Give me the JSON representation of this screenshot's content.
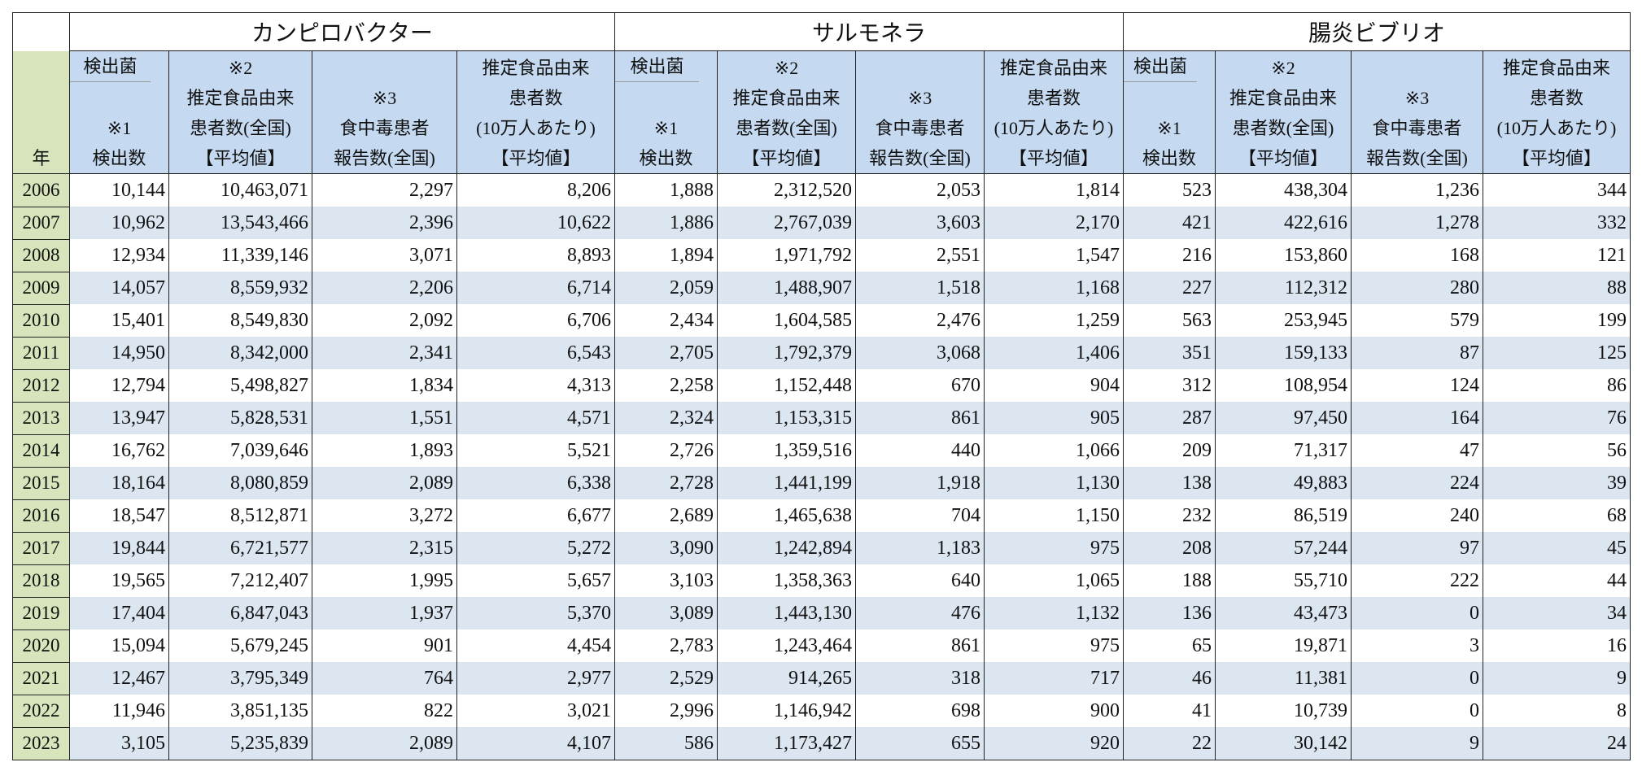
{
  "table": {
    "year_header": "年",
    "groups": [
      {
        "name": "カンピロバクター",
        "columns": [
          {
            "lines": [
              "検出菌",
              "※1",
              "検出数"
            ]
          },
          {
            "lines": [
              "※2",
              "推定食品由来",
              "患者数(全国)",
              "【平均値】"
            ]
          },
          {
            "lines": [
              "※3",
              "食中毒患者",
              "報告数(全国)"
            ]
          },
          {
            "lines": [
              "推定食品由来",
              "患者数",
              "(10万人あたり)",
              "【平均値】"
            ]
          }
        ]
      },
      {
        "name": "サルモネラ",
        "columns": [
          {
            "lines": [
              "検出菌",
              "※1",
              "検出数"
            ]
          },
          {
            "lines": [
              "※2",
              "推定食品由来",
              "患者数(全国)",
              "【平均値】"
            ]
          },
          {
            "lines": [
              "※3",
              "食中毒患者",
              "報告数(全国)"
            ]
          },
          {
            "lines": [
              "推定食品由来",
              "患者数",
              "(10万人あたり)",
              "【平均値】"
            ]
          }
        ]
      },
      {
        "name": "腸炎ビブリオ",
        "columns": [
          {
            "lines": [
              "検出菌",
              "※1",
              "検出数"
            ]
          },
          {
            "lines": [
              "※2",
              "推定食品由来",
              "患者数(全国)",
              "【平均値】"
            ]
          },
          {
            "lines": [
              "※3",
              "食中毒患者",
              "報告数(全国)"
            ]
          },
          {
            "lines": [
              "推定食品由来",
              "患者数",
              "(10万人あたり)",
              "【平均値】"
            ]
          }
        ]
      }
    ],
    "rows": [
      [
        "2006",
        "10,144",
        "10,463,071",
        "2,297",
        "8,206",
        "1,888",
        "2,312,520",
        "2,053",
        "1,814",
        "523",
        "438,304",
        "1,236",
        "344"
      ],
      [
        "2007",
        "10,962",
        "13,543,466",
        "2,396",
        "10,622",
        "1,886",
        "2,767,039",
        "3,603",
        "2,170",
        "421",
        "422,616",
        "1,278",
        "332"
      ],
      [
        "2008",
        "12,934",
        "11,339,146",
        "3,071",
        "8,893",
        "1,894",
        "1,971,792",
        "2,551",
        "1,547",
        "216",
        "153,860",
        "168",
        "121"
      ],
      [
        "2009",
        "14,057",
        "8,559,932",
        "2,206",
        "6,714",
        "2,059",
        "1,488,907",
        "1,518",
        "1,168",
        "227",
        "112,312",
        "280",
        "88"
      ],
      [
        "2010",
        "15,401",
        "8,549,830",
        "2,092",
        "6,706",
        "2,434",
        "1,604,585",
        "2,476",
        "1,259",
        "563",
        "253,945",
        "579",
        "199"
      ],
      [
        "2011",
        "14,950",
        "8,342,000",
        "2,341",
        "6,543",
        "2,705",
        "1,792,379",
        "3,068",
        "1,406",
        "351",
        "159,133",
        "87",
        "125"
      ],
      [
        "2012",
        "12,794",
        "5,498,827",
        "1,834",
        "4,313",
        "2,258",
        "1,152,448",
        "670",
        "904",
        "312",
        "108,954",
        "124",
        "86"
      ],
      [
        "2013",
        "13,947",
        "5,828,531",
        "1,551",
        "4,571",
        "2,324",
        "1,153,315",
        "861",
        "905",
        "287",
        "97,450",
        "164",
        "76"
      ],
      [
        "2014",
        "16,762",
        "7,039,646",
        "1,893",
        "5,521",
        "2,726",
        "1,359,516",
        "440",
        "1,066",
        "209",
        "71,317",
        "47",
        "56"
      ],
      [
        "2015",
        "18,164",
        "8,080,859",
        "2,089",
        "6,338",
        "2,728",
        "1,441,199",
        "1,918",
        "1,130",
        "138",
        "49,883",
        "224",
        "39"
      ],
      [
        "2016",
        "18,547",
        "8,512,871",
        "3,272",
        "6,677",
        "2,689",
        "1,465,638",
        "704",
        "1,150",
        "232",
        "86,519",
        "240",
        "68"
      ],
      [
        "2017",
        "19,844",
        "6,721,577",
        "2,315",
        "5,272",
        "3,090",
        "1,242,894",
        "1,183",
        "975",
        "208",
        "57,244",
        "97",
        "45"
      ],
      [
        "2018",
        "19,565",
        "7,212,407",
        "1,995",
        "5,657",
        "3,103",
        "1,358,363",
        "640",
        "1,065",
        "188",
        "55,710",
        "222",
        "44"
      ],
      [
        "2019",
        "17,404",
        "6,847,043",
        "1,937",
        "5,370",
        "3,089",
        "1,443,130",
        "476",
        "1,132",
        "136",
        "43,473",
        "0",
        "34"
      ],
      [
        "2020",
        "15,094",
        "5,679,245",
        "901",
        "4,454",
        "2,783",
        "1,243,464",
        "861",
        "975",
        "65",
        "19,871",
        "3",
        "16"
      ],
      [
        "2021",
        "12,467",
        "3,795,349",
        "764",
        "2,977",
        "2,529",
        "914,265",
        "318",
        "717",
        "46",
        "11,381",
        "0",
        "9"
      ],
      [
        "2022",
        "11,946",
        "3,851,135",
        "822",
        "3,021",
        "2,996",
        "1,146,942",
        "698",
        "900",
        "41",
        "10,739",
        "0",
        "8"
      ],
      [
        "2023",
        "3,105",
        "5,235,839",
        "2,089",
        "4,107",
        "586",
        "1,173,427",
        "655",
        "920",
        "22",
        "30,142",
        "9",
        "24"
      ]
    ]
  }
}
